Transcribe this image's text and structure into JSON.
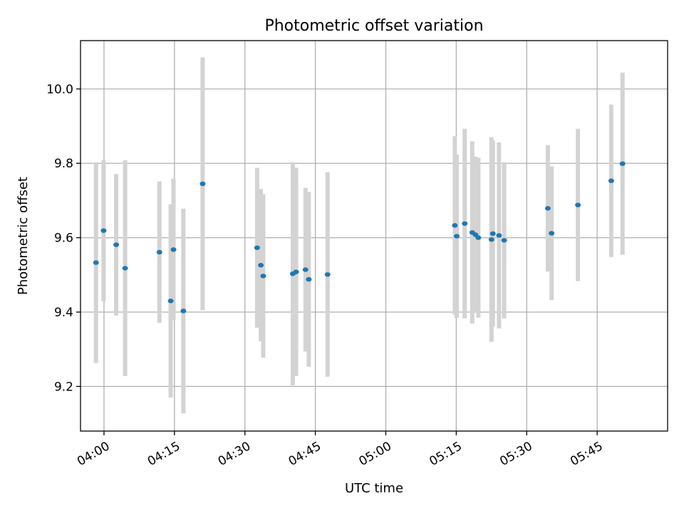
{
  "chart_data": {
    "type": "scatter",
    "title": "Photometric offset variation",
    "xlabel": "UTC time",
    "ylabel": "Photometric offset",
    "x_unit": "UTC time (HH:MM)",
    "xlim": [
      "03:55",
      "06:00"
    ],
    "ylim": [
      9.08,
      10.13
    ],
    "x_ticks": [
      "04:00",
      "04:15",
      "04:30",
      "04:45",
      "05:00",
      "05:15",
      "05:30",
      "05:45"
    ],
    "y_ticks": [
      9.2,
      9.4,
      9.6,
      9.8,
      10.0
    ],
    "y_tick_labels": [
      "9.2",
      "9.4",
      "9.6",
      "9.8",
      "10.0"
    ],
    "grid": true,
    "marker_color": "#1f77b4",
    "errorbar_color": "#d3d3d3",
    "points": [
      {
        "x": "03:58:18",
        "y": 9.533,
        "err": 0.27
      },
      {
        "x": "03:59:55",
        "y": 9.619,
        "err": 0.19
      },
      {
        "x": "04:02:36",
        "y": 9.581,
        "err": 0.19
      },
      {
        "x": "04:04:30",
        "y": 9.518,
        "err": 0.29
      },
      {
        "x": "04:11:48",
        "y": 9.561,
        "err": 0.19
      },
      {
        "x": "04:14:12",
        "y": 9.43,
        "err": 0.26
      },
      {
        "x": "04:14:48",
        "y": 9.568,
        "err": 0.19
      },
      {
        "x": "04:16:54",
        "y": 9.403,
        "err": 0.275
      },
      {
        "x": "04:21:00",
        "y": 9.745,
        "err": 0.34
      },
      {
        "x": "04:32:36",
        "y": 9.573,
        "err": 0.215
      },
      {
        "x": "04:33:24",
        "y": 9.526,
        "err": 0.205
      },
      {
        "x": "04:33:54",
        "y": 9.497,
        "err": 0.22
      },
      {
        "x": "04:40:12",
        "y": 9.503,
        "err": 0.3
      },
      {
        "x": "04:40:54",
        "y": 9.508,
        "err": 0.28
      },
      {
        "x": "04:42:54",
        "y": 9.514,
        "err": 0.22
      },
      {
        "x": "04:43:36",
        "y": 9.488,
        "err": 0.235
      },
      {
        "x": "04:47:36",
        "y": 9.501,
        "err": 0.275
      },
      {
        "x": "05:14:42",
        "y": 9.633,
        "err": 0.24
      },
      {
        "x": "05:15:06",
        "y": 9.604,
        "err": 0.22
      },
      {
        "x": "05:16:48",
        "y": 9.638,
        "err": 0.255
      },
      {
        "x": "05:18:24",
        "y": 9.614,
        "err": 0.245
      },
      {
        "x": "05:19:06",
        "y": 9.608,
        "err": 0.21
      },
      {
        "x": "05:19:42",
        "y": 9.6,
        "err": 0.215
      },
      {
        "x": "05:22:30",
        "y": 9.595,
        "err": 0.275
      },
      {
        "x": "05:22:48",
        "y": 9.611,
        "err": 0.25
      },
      {
        "x": "05:24:06",
        "y": 9.606,
        "err": 0.25
      },
      {
        "x": "05:25:12",
        "y": 9.593,
        "err": 0.21
      },
      {
        "x": "05:34:30",
        "y": 9.679,
        "err": 0.17
      },
      {
        "x": "05:35:18",
        "y": 9.612,
        "err": 0.18
      },
      {
        "x": "05:40:54",
        "y": 9.688,
        "err": 0.205
      },
      {
        "x": "05:48:00",
        "y": 9.753,
        "err": 0.205
      },
      {
        "x": "05:50:24",
        "y": 9.799,
        "err": 0.245
      }
    ]
  }
}
